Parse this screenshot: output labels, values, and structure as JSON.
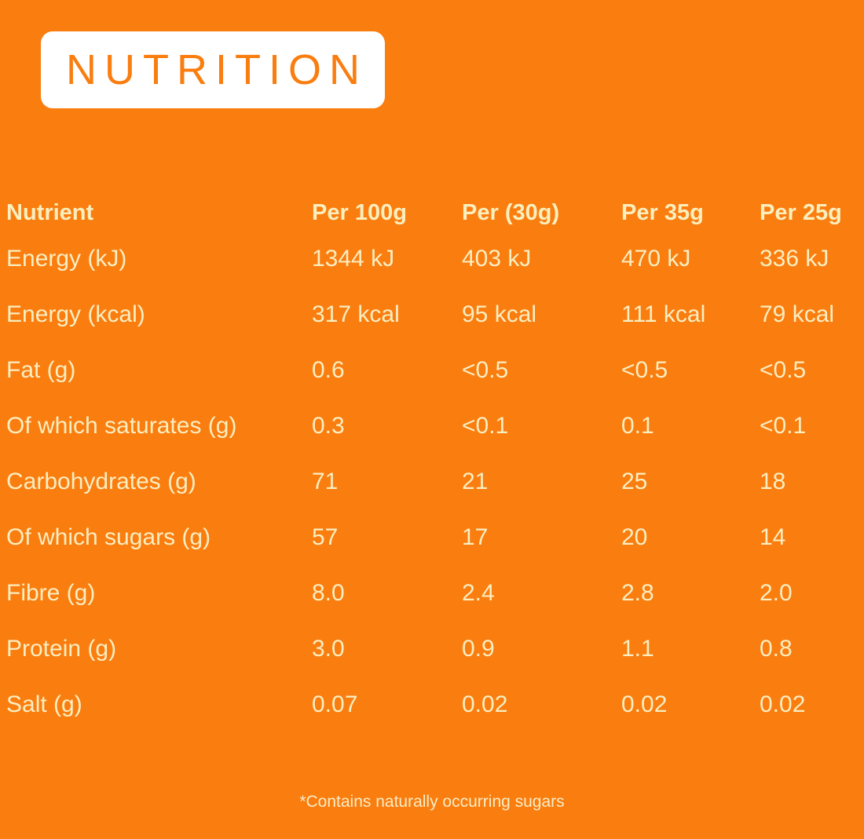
{
  "title": "NUTRITION",
  "colors": {
    "background": "#FA7D0F",
    "badge_background": "#FFFFFF",
    "badge_text": "#FA7D0F",
    "table_text": "#FAEEC1",
    "header_text": "#FBEFBE"
  },
  "table": {
    "headers": [
      "Nutrient",
      "Per 100g",
      "Per (30g)",
      "Per 35g",
      "Per 25g"
    ],
    "rows": [
      {
        "nutrient": "Energy (kJ)",
        "values": [
          "1344 kJ",
          "403 kJ",
          "470 kJ",
          "336 kJ"
        ]
      },
      {
        "nutrient": "Energy (kcal)",
        "values": [
          "317 kcal",
          "95 kcal",
          "111 kcal",
          "79 kcal"
        ]
      },
      {
        "nutrient": "Fat (g)",
        "values": [
          "0.6",
          "<0.5",
          "<0.5",
          "<0.5"
        ]
      },
      {
        "nutrient": "Of which saturates (g)",
        "values": [
          "0.3",
          "<0.1",
          "0.1",
          "<0.1"
        ]
      },
      {
        "nutrient": "Carbohydrates (g)",
        "values": [
          "71",
          "21",
          "25",
          "18"
        ]
      },
      {
        "nutrient": "Of which sugars (g)",
        "values": [
          "57",
          "17",
          "20",
          "14"
        ]
      },
      {
        "nutrient": "Fibre (g)",
        "values": [
          "8.0",
          "2.4",
          "2.8",
          "2.0"
        ]
      },
      {
        "nutrient": "Protein (g)",
        "values": [
          "3.0",
          "0.9",
          "1.1",
          "0.8"
        ]
      },
      {
        "nutrient": "Salt (g)",
        "values": [
          "0.07",
          "0.02",
          "0.02",
          "0.02"
        ]
      }
    ]
  },
  "footnote": "*Contains naturally occurring sugars"
}
